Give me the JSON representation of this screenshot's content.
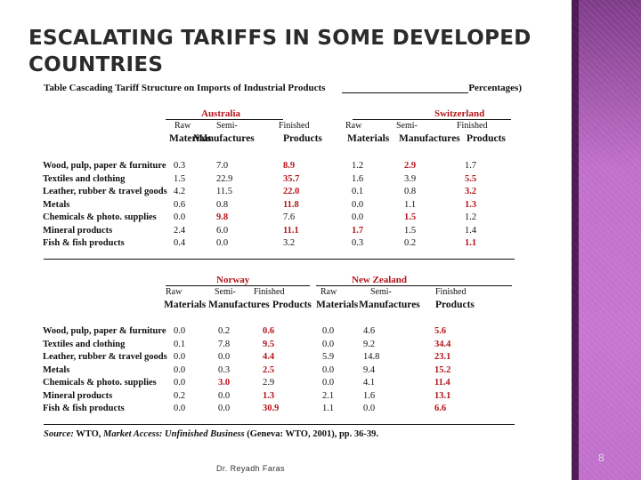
{
  "title": "ESCALATING TARIFFS IN SOME DEVELOPED COUNTRIES",
  "table_caption": "Table  Cascading Tariff Structure on Imports of Industrial Products",
  "units_label": "Percentages)",
  "row_labels": [
    "Wood, pulp, paper & furniture",
    "Textiles and clothing",
    "Leather, rubber & travel goods",
    "Metals",
    "Chemicals & photo. supplies",
    "Mineral products",
    "Fish & fish products"
  ],
  "col_heads": {
    "raw_1": "Raw",
    "raw_2": "Materials",
    "semi_1": "Semi-",
    "semi_2": "Manufactures",
    "fin_1": "Finished",
    "fin_2": "Products"
  },
  "panels": [
    {
      "country": "Australia",
      "raw": [
        "0.3",
        "1.5",
        "4.2",
        "0.6",
        "0.0",
        "2.4",
        "0.4"
      ],
      "semi": [
        "7.0",
        "22.9",
        "11.5",
        "0.8",
        "9.8",
        "6.0",
        "0.0"
      ],
      "fin": [
        "8.9",
        "35.7",
        "22.0",
        "11.8",
        "7.6",
        "11.1",
        "3.2"
      ],
      "red": [
        [
          0,
          2
        ],
        [
          1,
          2
        ],
        [
          2,
          2
        ],
        [
          3,
          2
        ],
        [
          4,
          1
        ],
        [
          5,
          2
        ]
      ]
    },
    {
      "country": "Switzerland",
      "raw": [
        "1.2",
        "1.6",
        "0.1",
        "0.0",
        "0.0",
        "1.7",
        "0.3"
      ],
      "semi": [
        "2.9",
        "3.9",
        "0.8",
        "1.1",
        "1.5",
        "1.5",
        "0.2"
      ],
      "fin": [
        "1.7",
        "5.5",
        "3.2",
        "1.3",
        "1.2",
        "1.4",
        "1.1"
      ],
      "red": [
        [
          0,
          1
        ],
        [
          1,
          2
        ],
        [
          2,
          2
        ],
        [
          3,
          2
        ],
        [
          4,
          1
        ],
        [
          5,
          0
        ],
        [
          6,
          2
        ]
      ]
    },
    {
      "country": "Norway",
      "raw": [
        "0.0",
        "0.1",
        "0.0",
        "0.0",
        "0.0",
        "0.2",
        "0.0"
      ],
      "semi": [
        "0.2",
        "7.8",
        "0.0",
        "0.3",
        "3.0",
        "0.0",
        "0.0"
      ],
      "fin": [
        "0.6",
        "9.5",
        "4.4",
        "2.5",
        "2.9",
        "1.3",
        "30.9"
      ],
      "red": [
        [
          0,
          2
        ],
        [
          1,
          2
        ],
        [
          2,
          2
        ],
        [
          3,
          2
        ],
        [
          4,
          1
        ],
        [
          5,
          2
        ],
        [
          6,
          2
        ]
      ]
    },
    {
      "country": "New Zealand",
      "raw": [
        "0.0",
        "0.0",
        "5.9",
        "0.0",
        "0.0",
        "2.1",
        "1.1"
      ],
      "semi": [
        "4.6",
        "9.2",
        "14.8",
        "9.4",
        "4.1",
        "1.6",
        "0.0"
      ],
      "fin": [
        "5.6",
        "34.4",
        "23.1",
        "15.2",
        "11.4",
        "13.1",
        "6.6"
      ],
      "red": [
        [
          0,
          2
        ],
        [
          1,
          2
        ],
        [
          2,
          2
        ],
        [
          3,
          2
        ],
        [
          4,
          2
        ],
        [
          5,
          2
        ],
        [
          6,
          2
        ]
      ]
    }
  ],
  "source": {
    "label": "Source:",
    "text1": " WTO, ",
    "italic": "Market Access: Unfinished Business",
    "text2": " (Geneva: WTO, 2001), pp. 36-39."
  },
  "footer": "Dr. Reyadh Faras",
  "page_number": "8",
  "colors": {
    "highlight": "#b5141a",
    "band": "#c774d0",
    "text": "#111111"
  }
}
